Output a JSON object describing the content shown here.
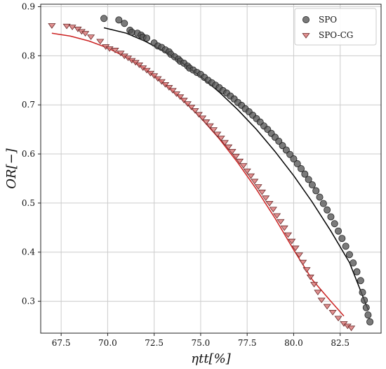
{
  "chart_data": {
    "type": "scatter",
    "xlabel": "ηtt[%]",
    "ylabel": "OR[−]",
    "xlim": [
      66.4,
      84.7
    ],
    "ylim": [
      0.235,
      0.905
    ],
    "x_ticks": [
      67.5,
      70.0,
      72.5,
      75.0,
      77.5,
      80.0,
      82.5
    ],
    "x_tick_labels": [
      "67.5",
      "70.0",
      "72.5",
      "75.0",
      "77.5",
      "80.0",
      "82.5"
    ],
    "y_ticks": [
      0.3,
      0.4,
      0.5,
      0.6,
      0.7,
      0.8,
      0.9
    ],
    "y_tick_labels": [
      "0.3",
      "0.4",
      "0.5",
      "0.6",
      "0.7",
      "0.8",
      "0.9"
    ],
    "grid": true,
    "legend": "top-right",
    "series": [
      {
        "name": "SPO",
        "marker": "circle",
        "color": "#555555",
        "points": [
          [
            69.8,
            0.876
          ],
          [
            70.6,
            0.873
          ],
          [
            70.9,
            0.866
          ],
          [
            71.2,
            0.852
          ],
          [
            71.3,
            0.848
          ],
          [
            71.6,
            0.846
          ],
          [
            71.8,
            0.842
          ],
          [
            71.9,
            0.838
          ],
          [
            72.1,
            0.836
          ],
          [
            72.5,
            0.826
          ],
          [
            72.7,
            0.82
          ],
          [
            72.9,
            0.817
          ],
          [
            73.1,
            0.812
          ],
          [
            73.3,
            0.808
          ],
          [
            73.4,
            0.803
          ],
          [
            73.6,
            0.798
          ],
          [
            73.8,
            0.793
          ],
          [
            73.9,
            0.789
          ],
          [
            74.1,
            0.785
          ],
          [
            74.3,
            0.779
          ],
          [
            74.4,
            0.775
          ],
          [
            74.6,
            0.771
          ],
          [
            74.8,
            0.766
          ],
          [
            75.0,
            0.762
          ],
          [
            75.2,
            0.756
          ],
          [
            75.4,
            0.75
          ],
          [
            75.6,
            0.745
          ],
          [
            75.8,
            0.74
          ],
          [
            76.0,
            0.735
          ],
          [
            76.2,
            0.729
          ],
          [
            76.4,
            0.724
          ],
          [
            76.6,
            0.718
          ],
          [
            76.8,
            0.712
          ],
          [
            77.0,
            0.705
          ],
          [
            77.2,
            0.699
          ],
          [
            77.4,
            0.692
          ],
          [
            77.6,
            0.686
          ],
          [
            77.8,
            0.679
          ],
          [
            78.0,
            0.672
          ],
          [
            78.2,
            0.665
          ],
          [
            78.4,
            0.657
          ],
          [
            78.6,
            0.65
          ],
          [
            78.8,
            0.642
          ],
          [
            79.0,
            0.634
          ],
          [
            79.2,
            0.626
          ],
          [
            79.4,
            0.617
          ],
          [
            79.6,
            0.608
          ],
          [
            79.8,
            0.599
          ],
          [
            80.0,
            0.59
          ],
          [
            80.2,
            0.58
          ],
          [
            80.4,
            0.57
          ],
          [
            80.6,
            0.559
          ],
          [
            80.8,
            0.548
          ],
          [
            81.0,
            0.537
          ],
          [
            81.2,
            0.525
          ],
          [
            81.4,
            0.512
          ],
          [
            81.6,
            0.499
          ],
          [
            81.8,
            0.486
          ],
          [
            82.0,
            0.472
          ],
          [
            82.2,
            0.458
          ],
          [
            82.4,
            0.443
          ],
          [
            82.6,
            0.428
          ],
          [
            82.8,
            0.412
          ],
          [
            83.0,
            0.395
          ],
          [
            83.2,
            0.378
          ],
          [
            83.4,
            0.36
          ],
          [
            83.6,
            0.342
          ],
          [
            83.7,
            0.318
          ],
          [
            83.8,
            0.302
          ],
          [
            83.9,
            0.287
          ],
          [
            84.0,
            0.272
          ],
          [
            84.1,
            0.258
          ]
        ]
      },
      {
        "name": "SPO-CG",
        "marker": "triangle-down",
        "color": "#d97474",
        "points": [
          [
            67.0,
            0.862
          ],
          [
            67.8,
            0.861
          ],
          [
            68.1,
            0.859
          ],
          [
            68.4,
            0.855
          ],
          [
            68.6,
            0.85
          ],
          [
            68.8,
            0.846
          ],
          [
            69.1,
            0.839
          ],
          [
            69.6,
            0.83
          ],
          [
            69.9,
            0.819
          ],
          [
            70.1,
            0.815
          ],
          [
            70.4,
            0.812
          ],
          [
            70.7,
            0.806
          ],
          [
            70.9,
            0.8
          ],
          [
            71.1,
            0.796
          ],
          [
            71.3,
            0.791
          ],
          [
            71.5,
            0.787
          ],
          [
            71.7,
            0.782
          ],
          [
            71.9,
            0.776
          ],
          [
            72.1,
            0.771
          ],
          [
            72.3,
            0.765
          ],
          [
            72.5,
            0.76
          ],
          [
            72.7,
            0.754
          ],
          [
            72.9,
            0.748
          ],
          [
            73.1,
            0.742
          ],
          [
            73.3,
            0.736
          ],
          [
            73.5,
            0.73
          ],
          [
            73.7,
            0.723
          ],
          [
            73.9,
            0.717
          ],
          [
            74.1,
            0.71
          ],
          [
            74.3,
            0.703
          ],
          [
            74.5,
            0.696
          ],
          [
            74.7,
            0.689
          ],
          [
            74.9,
            0.681
          ],
          [
            75.1,
            0.674
          ],
          [
            75.3,
            0.666
          ],
          [
            75.5,
            0.658
          ],
          [
            75.7,
            0.65
          ],
          [
            75.9,
            0.641
          ],
          [
            76.1,
            0.633
          ],
          [
            76.3,
            0.624
          ],
          [
            76.5,
            0.615
          ],
          [
            76.7,
            0.606
          ],
          [
            76.9,
            0.596
          ],
          [
            77.1,
            0.586
          ],
          [
            77.3,
            0.577
          ],
          [
            77.5,
            0.566
          ],
          [
            77.7,
            0.556
          ],
          [
            77.9,
            0.545
          ],
          [
            78.1,
            0.534
          ],
          [
            78.3,
            0.523
          ],
          [
            78.5,
            0.511
          ],
          [
            78.7,
            0.5
          ],
          [
            78.9,
            0.488
          ],
          [
            79.1,
            0.475
          ],
          [
            79.3,
            0.463
          ],
          [
            79.5,
            0.45
          ],
          [
            79.7,
            0.436
          ],
          [
            79.9,
            0.423
          ],
          [
            80.1,
            0.409
          ],
          [
            80.3,
            0.395
          ],
          [
            80.5,
            0.38
          ],
          [
            80.7,
            0.365
          ],
          [
            80.9,
            0.35
          ],
          [
            81.1,
            0.335
          ],
          [
            81.3,
            0.319
          ],
          [
            81.5,
            0.303
          ],
          [
            81.8,
            0.29
          ],
          [
            82.1,
            0.278
          ],
          [
            82.4,
            0.266
          ],
          [
            82.7,
            0.255
          ],
          [
            82.9,
            0.25
          ],
          [
            83.1,
            0.246
          ]
        ]
      }
    ],
    "fit_lines": [
      {
        "series": "SPO",
        "color": "#000000",
        "points": [
          [
            69.8,
            0.857
          ],
          [
            71.0,
            0.846
          ],
          [
            72.0,
            0.83
          ],
          [
            73.0,
            0.81
          ],
          [
            74.0,
            0.786
          ],
          [
            75.0,
            0.758
          ],
          [
            76.0,
            0.726
          ],
          [
            77.0,
            0.69
          ],
          [
            78.0,
            0.65
          ],
          [
            79.0,
            0.605
          ],
          [
            80.0,
            0.556
          ],
          [
            81.0,
            0.502
          ],
          [
            82.0,
            0.443
          ],
          [
            83.0,
            0.379
          ],
          [
            84.0,
            0.283
          ]
        ]
      },
      {
        "series": "SPO-CG",
        "color": "#cc2222",
        "points": [
          [
            67.0,
            0.846
          ],
          [
            68.0,
            0.84
          ],
          [
            69.0,
            0.83
          ],
          [
            70.0,
            0.816
          ],
          [
            71.0,
            0.797
          ],
          [
            72.0,
            0.774
          ],
          [
            73.0,
            0.745
          ],
          [
            74.0,
            0.712
          ],
          [
            75.0,
            0.674
          ],
          [
            76.0,
            0.631
          ],
          [
            77.0,
            0.582
          ],
          [
            78.0,
            0.528
          ],
          [
            79.0,
            0.469
          ],
          [
            80.0,
            0.405
          ],
          [
            81.0,
            0.344
          ],
          [
            82.0,
            0.3
          ],
          [
            82.7,
            0.27
          ]
        ]
      }
    ]
  }
}
